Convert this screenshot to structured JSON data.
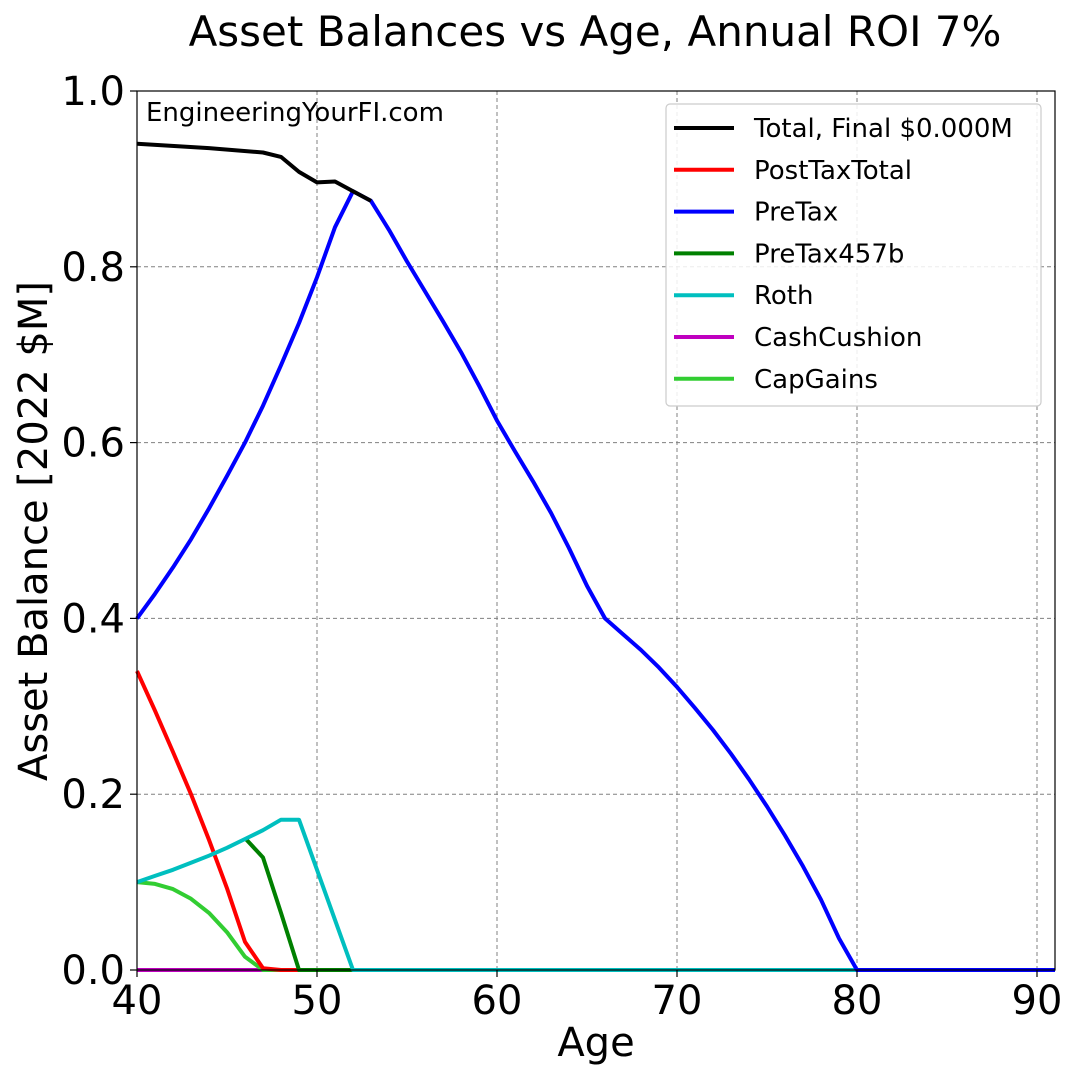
{
  "chart_data": {
    "type": "line",
    "title": "Asset Balances vs Age, Annual ROI 7%",
    "xlabel": "Age",
    "ylabel": "Asset Balance [2022 $M]",
    "watermark": "EngineeringYourFI.com",
    "xlim": [
      40,
      91
    ],
    "ylim": [
      0,
      1.0
    ],
    "xticks": [
      40,
      50,
      60,
      70,
      80,
      90
    ],
    "xtick_labels": [
      "40",
      "50",
      "60",
      "70",
      "80",
      "90"
    ],
    "yticks": [
      0,
      0.2,
      0.4,
      0.6,
      0.8,
      1.0
    ],
    "ytick_labels": [
      "0.0",
      "0.2",
      "0.4",
      "0.6",
      "0.8",
      "1.0"
    ],
    "grid": true,
    "legend_position": "top-right",
    "series": [
      {
        "name": "Total, Final $0.000M",
        "color": "#000000",
        "points": [
          [
            40,
            0.94
          ],
          [
            44,
            0.935
          ],
          [
            47,
            0.93
          ],
          [
            48,
            0.925
          ],
          [
            49,
            0.908
          ],
          [
            50,
            0.896
          ],
          [
            51,
            0.897
          ],
          [
            52,
            0.886
          ],
          [
            53,
            0.875
          ]
        ]
      },
      {
        "name": "PostTaxTotal",
        "color": "#ff0000",
        "points": [
          [
            40,
            0.34
          ],
          [
            41,
            0.295
          ],
          [
            42,
            0.248
          ],
          [
            43,
            0.2
          ],
          [
            44,
            0.148
          ],
          [
            45,
            0.093
          ],
          [
            46,
            0.032
          ],
          [
            47,
            0.002
          ],
          [
            48,
            0
          ],
          [
            91,
            0
          ]
        ]
      },
      {
        "name": "PreTax",
        "color": "#0000ff",
        "points": [
          [
            40,
            0.4
          ],
          [
            41,
            0.428
          ],
          [
            42,
            0.458
          ],
          [
            43,
            0.49
          ],
          [
            44,
            0.525
          ],
          [
            45,
            0.562
          ],
          [
            46,
            0.6
          ],
          [
            47,
            0.642
          ],
          [
            48,
            0.688
          ],
          [
            49,
            0.736
          ],
          [
            50,
            0.788
          ],
          [
            51,
            0.845
          ],
          [
            52,
            0.886
          ],
          [
            53,
            0.875
          ],
          [
            54,
            0.842
          ],
          [
            55,
            0.806
          ],
          [
            56,
            0.772
          ],
          [
            57,
            0.738
          ],
          [
            58,
            0.703
          ],
          [
            59,
            0.665
          ],
          [
            60,
            0.625
          ],
          [
            61,
            0.59
          ],
          [
            62,
            0.556
          ],
          [
            63,
            0.52
          ],
          [
            64,
            0.48
          ],
          [
            65,
            0.437
          ],
          [
            66,
            0.4
          ],
          [
            67,
            0.382
          ],
          [
            68,
            0.364
          ],
          [
            69,
            0.344
          ],
          [
            70,
            0.322
          ],
          [
            71,
            0.298
          ],
          [
            72,
            0.273
          ],
          [
            73,
            0.246
          ],
          [
            74,
            0.217
          ],
          [
            75,
            0.186
          ],
          [
            76,
            0.153
          ],
          [
            77,
            0.118
          ],
          [
            78,
            0.08
          ],
          [
            79,
            0.036
          ],
          [
            80,
            0
          ],
          [
            91,
            0
          ]
        ]
      },
      {
        "name": "PreTax457b",
        "color": "#008000",
        "points": [
          [
            46,
            0.15
          ],
          [
            47,
            0.128
          ],
          [
            48,
            0.065
          ],
          [
            49,
            0
          ],
          [
            91,
            0
          ]
        ]
      },
      {
        "name": "Roth",
        "color": "#00bfbf",
        "points": [
          [
            40,
            0.1
          ],
          [
            41,
            0.107
          ],
          [
            42,
            0.114
          ],
          [
            43,
            0.122
          ],
          [
            44,
            0.13
          ],
          [
            45,
            0.139
          ],
          [
            46,
            0.149
          ],
          [
            47,
            0.159
          ],
          [
            48,
            0.171
          ],
          [
            49,
            0.171
          ],
          [
            50,
            0.114
          ],
          [
            51,
            0.057
          ],
          [
            52,
            0
          ],
          [
            91,
            0
          ]
        ]
      },
      {
        "name": "CashCushion",
        "color": "#bf00bf",
        "points": [
          [
            40,
            0
          ],
          [
            91,
            0
          ]
        ]
      },
      {
        "name": "CapGains",
        "color": "#32cd32",
        "points": [
          [
            40,
            0.1
          ],
          [
            41,
            0.098
          ],
          [
            42,
            0.092
          ],
          [
            43,
            0.081
          ],
          [
            44,
            0.065
          ],
          [
            45,
            0.043
          ],
          [
            46,
            0.015
          ],
          [
            47,
            0
          ],
          [
            91,
            0
          ]
        ]
      }
    ]
  }
}
